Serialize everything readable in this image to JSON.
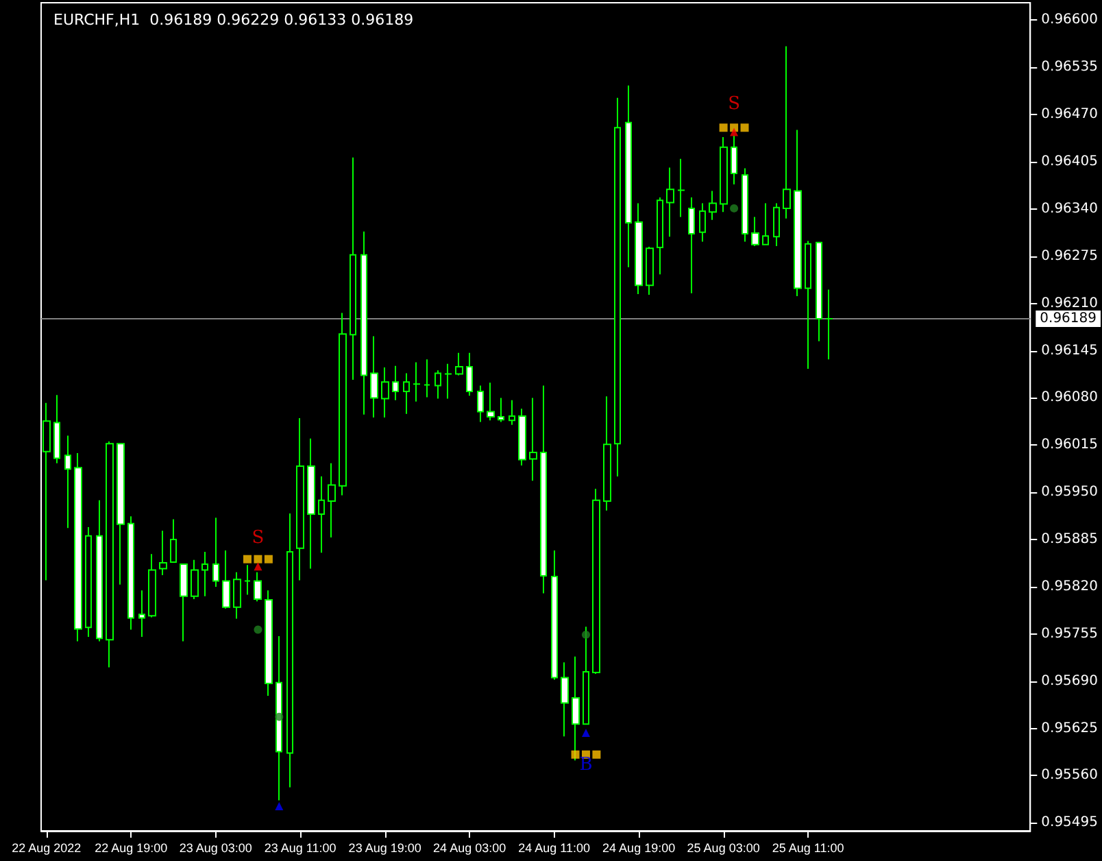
{
  "chart_data": {
    "type": "candlestick",
    "title": "EURCHF,H1  0.96189 0.96229 0.96133 0.96189",
    "color": "#00ff00",
    "x": [
      "2022-08-22T11:00",
      "2022-08-22T12:00",
      "2022-08-22T13:00",
      "2022-08-22T14:00",
      "2022-08-22T15:00",
      "2022-08-22T16:00",
      "2022-08-22T17:00",
      "2022-08-22T18:00",
      "2022-08-22T19:00",
      "2022-08-22T20:00",
      "2022-08-22T21:00",
      "2022-08-22T22:00",
      "2022-08-22T23:00",
      "2022-08-23T00:00",
      "2022-08-23T01:00",
      "2022-08-23T02:00",
      "2022-08-23T03:00",
      "2022-08-23T04:00",
      "2022-08-23T05:00",
      "2022-08-23T06:00",
      "2022-08-23T07:00",
      "2022-08-23T08:00",
      "2022-08-23T09:00",
      "2022-08-23T10:00",
      "2022-08-23T11:00",
      "2022-08-23T12:00",
      "2022-08-23T13:00",
      "2022-08-23T14:00",
      "2022-08-23T15:00",
      "2022-08-23T16:00",
      "2022-08-23T17:00",
      "2022-08-23T18:00",
      "2022-08-23T19:00",
      "2022-08-23T20:00",
      "2022-08-23T21:00",
      "2022-08-23T22:00",
      "2022-08-23T23:00",
      "2022-08-24T00:00",
      "2022-08-24T01:00",
      "2022-08-24T02:00",
      "2022-08-24T03:00",
      "2022-08-24T04:00",
      "2022-08-24T05:00",
      "2022-08-24T06:00",
      "2022-08-24T07:00",
      "2022-08-24T08:00",
      "2022-08-24T09:00",
      "2022-08-24T10:00",
      "2022-08-24T11:00",
      "2022-08-24T12:00",
      "2022-08-24T13:00",
      "2022-08-24T14:00",
      "2022-08-24T15:00",
      "2022-08-24T16:00",
      "2022-08-24T17:00",
      "2022-08-24T18:00",
      "2022-08-24T19:00",
      "2022-08-24T20:00",
      "2022-08-24T21:00",
      "2022-08-24T22:00",
      "2022-08-24T23:00",
      "2022-08-25T00:00",
      "2022-08-25T01:00",
      "2022-08-25T02:00",
      "2022-08-25T03:00",
      "2022-08-25T04:00",
      "2022-08-25T05:00",
      "2022-08-25T06:00",
      "2022-08-25T07:00",
      "2022-08-25T08:00",
      "2022-08-25T09:00",
      "2022-08-25T10:00",
      "2022-08-25T11:00",
      "2022-08-25T12:00",
      "2022-08-25T13:00"
    ],
    "ohlc": [
      [
        0.96006,
        0.96073,
        0.95829,
        0.96048
      ],
      [
        0.96046,
        0.96084,
        0.9599,
        0.95997
      ],
      [
        0.96001,
        0.96028,
        0.95901,
        0.95982
      ],
      [
        0.95984,
        0.96004,
        0.95745,
        0.95762
      ],
      [
        0.95764,
        0.95902,
        0.95751,
        0.9589
      ],
      [
        0.9589,
        0.95939,
        0.95745,
        0.95749
      ],
      [
        0.95747,
        0.9602,
        0.95709,
        0.96017
      ],
      [
        0.96017,
        0.96018,
        0.95823,
        0.95906
      ],
      [
        0.95907,
        0.95917,
        0.95761,
        0.95777
      ],
      [
        0.95782,
        0.95815,
        0.95751,
        0.95777
      ],
      [
        0.9578,
        0.95865,
        0.95778,
        0.95843
      ],
      [
        0.95845,
        0.95897,
        0.95836,
        0.95853
      ],
      [
        0.95854,
        0.95913,
        0.95854,
        0.95885
      ],
      [
        0.95851,
        0.95851,
        0.95745,
        0.95807
      ],
      [
        0.95807,
        0.95857,
        0.95803,
        0.95843
      ],
      [
        0.95843,
        0.95868,
        0.95807,
        0.95851
      ],
      [
        0.95851,
        0.95915,
        0.9582,
        0.95828
      ],
      [
        0.95828,
        0.9587,
        0.9579,
        0.95792
      ],
      [
        0.95792,
        0.9584,
        0.95776,
        0.9583
      ],
      [
        0.95828,
        0.9585,
        0.95809,
        0.95828
      ],
      [
        0.95828,
        0.9584,
        0.958,
        0.95803
      ],
      [
        0.95802,
        0.95815,
        0.9567,
        0.95687
      ],
      [
        0.95688,
        0.95752,
        0.95526,
        0.95593
      ],
      [
        0.95591,
        0.95921,
        0.95544,
        0.95868
      ],
      [
        0.95873,
        0.96052,
        0.95829,
        0.95986
      ],
      [
        0.95986,
        0.96024,
        0.95845,
        0.9592
      ],
      [
        0.9592,
        0.95972,
        0.95867,
        0.95939
      ],
      [
        0.95938,
        0.9599,
        0.95888,
        0.9596
      ],
      [
        0.95959,
        0.96197,
        0.95946,
        0.96168
      ],
      [
        0.96167,
        0.96411,
        0.96105,
        0.96277
      ],
      [
        0.96277,
        0.96309,
        0.96057,
        0.96111
      ],
      [
        0.96114,
        0.96165,
        0.96053,
        0.9608
      ],
      [
        0.96079,
        0.96122,
        0.96053,
        0.96102
      ],
      [
        0.96102,
        0.96124,
        0.96077,
        0.96089
      ],
      [
        0.96089,
        0.96114,
        0.96058,
        0.96102
      ],
      [
        0.96099,
        0.96129,
        0.96075,
        0.96099
      ],
      [
        0.96098,
        0.96133,
        0.96081,
        0.96098
      ],
      [
        0.96097,
        0.96118,
        0.96079,
        0.96114
      ],
      [
        0.96113,
        0.96127,
        0.96079,
        0.96113
      ],
      [
        0.96113,
        0.96142,
        0.96111,
        0.96123
      ],
      [
        0.96123,
        0.96142,
        0.96083,
        0.96089
      ],
      [
        0.96089,
        0.96097,
        0.96047,
        0.96061
      ],
      [
        0.96061,
        0.96101,
        0.96049,
        0.96054
      ],
      [
        0.96054,
        0.9608,
        0.96047,
        0.9605
      ],
      [
        0.96049,
        0.96077,
        0.96043,
        0.96055
      ],
      [
        0.96055,
        0.96065,
        0.95987,
        0.95995
      ],
      [
        0.95996,
        0.9608,
        0.95966,
        0.96005
      ],
      [
        0.96005,
        0.96097,
        0.95811,
        0.95835
      ],
      [
        0.95834,
        0.9587,
        0.95692,
        0.95695
      ],
      [
        0.95695,
        0.95716,
        0.95614,
        0.9566
      ],
      [
        0.95667,
        0.95724,
        0.95581,
        0.95631
      ],
      [
        0.95631,
        0.95765,
        0.95631,
        0.95703
      ],
      [
        0.95702,
        0.95955,
        0.957,
        0.95939
      ],
      [
        0.95938,
        0.96082,
        0.95925,
        0.96016
      ],
      [
        0.96017,
        0.96493,
        0.95972,
        0.96452
      ],
      [
        0.96459,
        0.9651,
        0.9626,
        0.96321
      ],
      [
        0.96322,
        0.96348,
        0.96223,
        0.96235
      ],
      [
        0.96235,
        0.96288,
        0.96222,
        0.96286
      ],
      [
        0.96287,
        0.96356,
        0.9625,
        0.96352
      ],
      [
        0.96349,
        0.96397,
        0.96302,
        0.96367
      ],
      [
        0.96366,
        0.96409,
        0.96329,
        0.96366
      ],
      [
        0.96341,
        0.96356,
        0.96224,
        0.96306
      ],
      [
        0.96308,
        0.96348,
        0.96295,
        0.96337
      ],
      [
        0.96336,
        0.96365,
        0.96325,
        0.96348
      ],
      [
        0.96347,
        0.96439,
        0.96336,
        0.96425
      ],
      [
        0.96425,
        0.96441,
        0.96374,
        0.96389
      ],
      [
        0.96387,
        0.96396,
        0.96295,
        0.96306
      ],
      [
        0.96307,
        0.96329,
        0.96289,
        0.96291
      ],
      [
        0.96291,
        0.96348,
        0.96291,
        0.96303
      ],
      [
        0.96302,
        0.96348,
        0.96289,
        0.96342
      ],
      [
        0.96341,
        0.96564,
        0.96327,
        0.96367
      ],
      [
        0.96365,
        0.96449,
        0.9622,
        0.96231
      ],
      [
        0.96231,
        0.96296,
        0.9612,
        0.96292
      ],
      [
        0.96294,
        0.96294,
        0.96158,
        0.96189
      ],
      [
        0.96189,
        0.96229,
        0.96133,
        0.96189
      ]
    ],
    "series": [
      {
        "type": "scatter",
        "color": "#ffc000",
        "marker": "square",
        "x": [
          "2022-08-23T06:00",
          "2022-08-23T07:00",
          "2022-08-23T08:00",
          "2022-08-24T13:00",
          "2022-08-24T14:00",
          "2022-08-24T15:00",
          "2022-08-25T03:00",
          "2022-08-25T04:00",
          "2022-08-25T05:00"
        ],
        "values": [
          0.95858,
          0.95858,
          0.95858,
          0.95589,
          0.95589,
          0.95589,
          0.96452,
          0.96452,
          0.96452
        ]
      },
      {
        "type": "scatter",
        "color": "#1f7f1f",
        "marker": "circle",
        "x": [
          "2022-08-23T07:00",
          "2022-08-23T09:00",
          "2022-08-24T14:00",
          "2022-08-25T04:00"
        ],
        "values": [
          0.95761,
          0.95641,
          0.95754,
          0.96341
        ]
      },
      {
        "type": "scatter",
        "color": "#ff0000",
        "marker": "triangle",
        "x": [
          "2022-08-23T07:00",
          "2022-08-25T04:00"
        ],
        "values": [
          0.95848,
          0.96446
        ],
        "value_labels": [
          "S",
          "S"
        ]
      },
      {
        "type": "scatter",
        "color": "#0000ff",
        "marker": "triangle",
        "x": [
          "2022-08-23T09:00",
          "2022-08-24T14:00"
        ],
        "values": [
          0.95518,
          0.95619
        ],
        "value_labels": [
          null,
          "B"
        ]
      }
    ],
    "ref_lines": [
      {
        "axis": "y",
        "value": 0.96189,
        "label": "0.96189",
        "color": "#808080"
      }
    ],
    "xlim": [
      "2022-08-22T10:30",
      "2022-08-26T08:00"
    ],
    "xticks": [
      {
        "value": "2022-08-22T11:00",
        "label": "22 Aug 2022"
      },
      {
        "value": "2022-08-22T19:00",
        "label": "22 Aug 19:00"
      },
      {
        "value": "2022-08-23T03:00",
        "label": "23 Aug 03:00"
      },
      {
        "value": "2022-08-23T11:00",
        "label": "23 Aug 11:00"
      },
      {
        "value": "2022-08-23T19:00",
        "label": "23 Aug 19:00"
      },
      {
        "value": "2022-08-24T03:00",
        "label": "24 Aug 03:00"
      },
      {
        "value": "2022-08-24T11:00",
        "label": "24 Aug 11:00"
      },
      {
        "value": "2022-08-24T19:00",
        "label": "24 Aug 19:00"
      },
      {
        "value": "2022-08-25T03:00",
        "label": "25 Aug 03:00"
      },
      {
        "value": "2022-08-25T11:00",
        "label": "25 Aug 11:00"
      }
    ],
    "ylim": [
      0.95484,
      0.96624
    ],
    "yticks": [
      {
        "value": 0.966,
        "label": "0.96600"
      },
      0.96535,
      {
        "value": 0.9647,
        "label": "0.96470"
      },
      0.96405,
      {
        "value": 0.9634,
        "label": "0.96340"
      },
      0.96275,
      {
        "value": 0.9621,
        "label": "0.96210"
      },
      0.96145,
      {
        "value": 0.9608,
        "label": "0.96080"
      },
      0.96015,
      {
        "value": 0.9595,
        "label": "0.95950"
      },
      0.95885,
      {
        "value": 0.9582,
        "label": "0.95820"
      },
      0.95755,
      {
        "value": 0.9569,
        "label": "0.95690"
      },
      0.95625,
      {
        "value": 0.9556,
        "label": "0.95560"
      },
      0.95495
    ]
  }
}
